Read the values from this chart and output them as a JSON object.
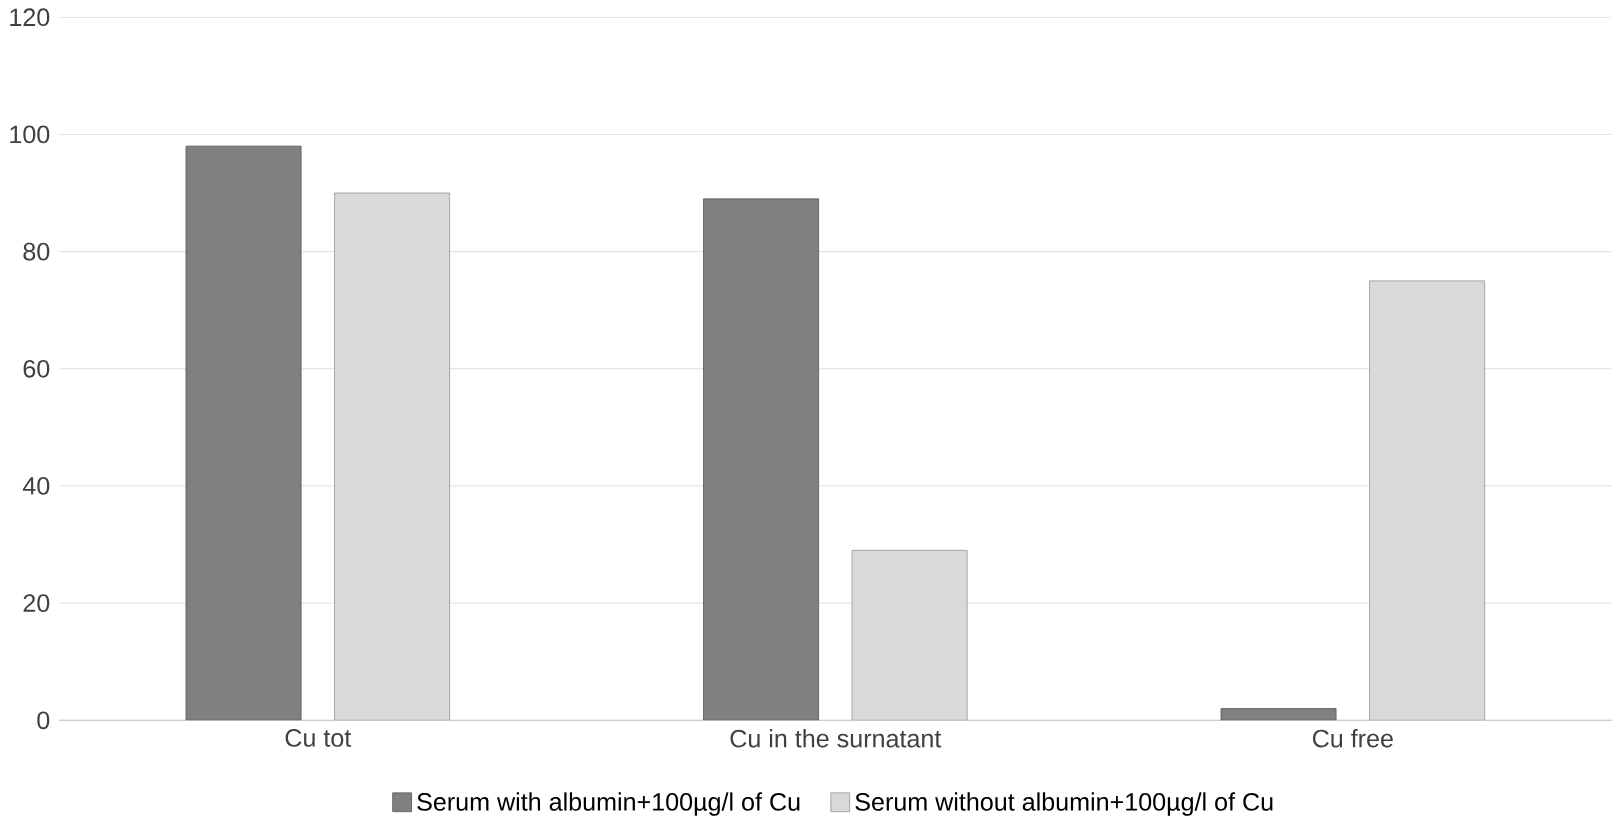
{
  "chart_data": {
    "type": "bar",
    "categories": [
      "Cu tot",
      "Cu in the surnatant",
      "Cu free"
    ],
    "series": [
      {
        "name": "Serum with albumin+100µg/l of Cu",
        "color": "#808080",
        "values": [
          98,
          89,
          2
        ]
      },
      {
        "name": "Serum without albumin+100µg/l of Cu",
        "color": "#d9d9d9",
        "values": [
          90,
          29,
          75
        ]
      }
    ],
    "ylim": [
      0,
      120
    ],
    "yticks": [
      0,
      20,
      40,
      60,
      80,
      100,
      120
    ],
    "grid": "y",
    "legend": "bottom"
  }
}
